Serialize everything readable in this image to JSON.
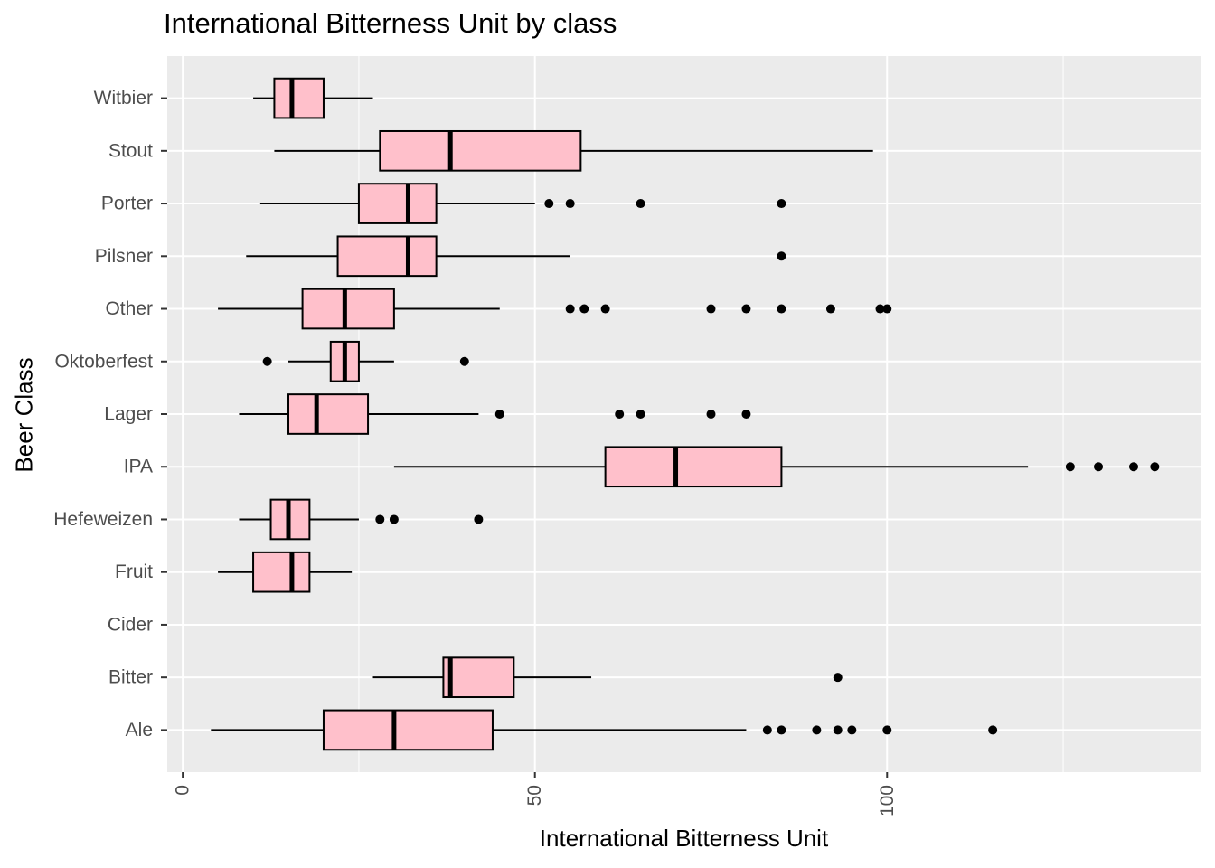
{
  "chart_data": {
    "type": "boxplot",
    "title": "International Bitterness Unit by class",
    "xlabel": "International Bitterness Unit",
    "ylabel": "Beer Class",
    "xlim": [
      -2.2,
      144.5
    ],
    "x_ticks": [
      0,
      50,
      100
    ],
    "x_minor_ticks": [
      25,
      75,
      125
    ],
    "categories": [
      "Ale",
      "Bitter",
      "Cider",
      "Fruit",
      "Hefeweizen",
      "IPA",
      "Lager",
      "Oktoberfest",
      "Other",
      "Pilsner",
      "Porter",
      "Stout",
      "Witbier"
    ],
    "boxes": [
      {
        "category": "Ale",
        "whisker_low": 4,
        "q1": 20,
        "median": 30,
        "q3": 44,
        "whisker_high": 80,
        "outliers": [
          83,
          85,
          90,
          93,
          95,
          100,
          115
        ]
      },
      {
        "category": "Bitter",
        "whisker_low": 27,
        "q1": 37,
        "median": 38,
        "q3": 47,
        "whisker_high": 58,
        "outliers": [
          93
        ]
      },
      {
        "category": "Cider",
        "whisker_low": null,
        "q1": null,
        "median": null,
        "q3": null,
        "whisker_high": null,
        "outliers": []
      },
      {
        "category": "Fruit",
        "whisker_low": 5,
        "q1": 10,
        "median": 15.5,
        "q3": 18,
        "whisker_high": 24,
        "outliers": []
      },
      {
        "category": "Hefeweizen",
        "whisker_low": 8,
        "q1": 12.5,
        "median": 15,
        "q3": 18,
        "whisker_high": 25,
        "outliers": [
          28,
          30,
          42
        ]
      },
      {
        "category": "IPA",
        "whisker_low": 30,
        "q1": 60,
        "median": 70,
        "q3": 85,
        "whisker_high": 120,
        "outliers": [
          126,
          130,
          135,
          138
        ]
      },
      {
        "category": "Lager",
        "whisker_low": 8,
        "q1": 15,
        "median": 19,
        "q3": 26.3,
        "whisker_high": 42,
        "outliers": [
          45,
          62,
          65,
          75,
          80
        ]
      },
      {
        "category": "Oktoberfest",
        "whisker_low": 15,
        "q1": 21,
        "median": 23,
        "q3": 25,
        "whisker_high": 30,
        "outliers": [
          12,
          40
        ]
      },
      {
        "category": "Other",
        "whisker_low": 5,
        "q1": 17,
        "median": 23,
        "q3": 30,
        "whisker_high": 45,
        "outliers": [
          55,
          57,
          60,
          75,
          80,
          85,
          92,
          99,
          100
        ]
      },
      {
        "category": "Pilsner",
        "whisker_low": 9,
        "q1": 22,
        "median": 32,
        "q3": 36,
        "whisker_high": 55,
        "outliers": [
          85
        ]
      },
      {
        "category": "Porter",
        "whisker_low": 11,
        "q1": 25,
        "median": 32,
        "q3": 36,
        "whisker_high": 50,
        "outliers": [
          52,
          55,
          65,
          85
        ]
      },
      {
        "category": "Stout",
        "whisker_low": 13,
        "q1": 28,
        "median": 38,
        "q3": 56.5,
        "whisker_high": 98,
        "outliers": []
      },
      {
        "category": "Witbier",
        "whisker_low": 10,
        "q1": 13,
        "median": 15.5,
        "q3": 20,
        "whisker_high": 27,
        "outliers": []
      }
    ],
    "colors": {
      "box_fill": "#ffc0cb",
      "panel_background": "#ebebeb",
      "grid": "#ffffff",
      "stroke": "#000000"
    },
    "grid": true,
    "legend": "none"
  }
}
